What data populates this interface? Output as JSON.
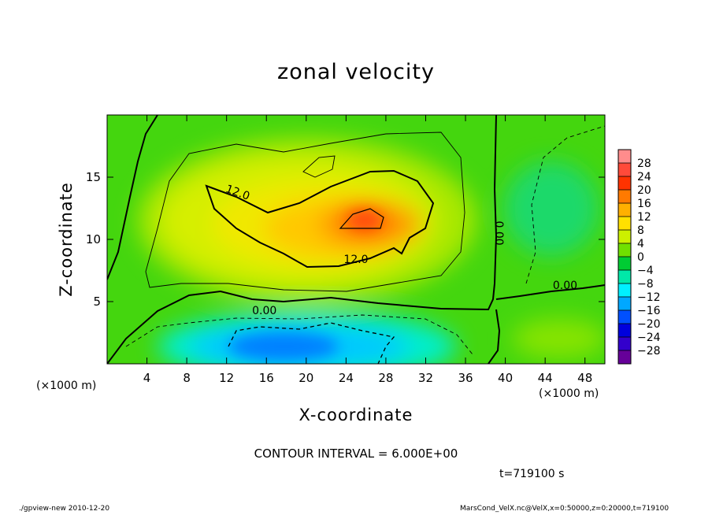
{
  "title": "zonal velocity",
  "xlabel": "X-coordinate",
  "ylabel": "Z-coordinate",
  "x_unit_left": "(×1000 m)",
  "x_unit_right": "(×1000 m)",
  "contour_interval": "CONTOUR INTERVAL = 6.000E+00",
  "time_label": "t=719100 s",
  "footer_left": "./gpview-new  2010-12-20",
  "footer_right": "MarsCond_VelX.nc@VelX,x=0:50000,z=0:20000,t=719100",
  "chart_data": {
    "type": "heatmap",
    "title": "zonal velocity",
    "xlabel": "X-coordinate",
    "ylabel": "Z-coordinate",
    "x_unit": "(×1000 m)",
    "xlim": [
      0,
      50
    ],
    "ylim": [
      0,
      20
    ],
    "xticks": [
      4,
      8,
      12,
      16,
      20,
      24,
      28,
      32,
      36,
      40,
      44,
      48
    ],
    "yticks": [
      5,
      10,
      15
    ],
    "contour_interval": 6.0,
    "contour_labels": [
      {
        "text": "12.0",
        "x": 13.0,
        "y": 13.5
      },
      {
        "text": "12.0",
        "x": 25.0,
        "y": 8.1
      },
      {
        "text": "0.00",
        "x": 15.8,
        "y": 4.0
      },
      {
        "text": "0.00",
        "x": 46.0,
        "y": 6.0
      },
      {
        "text": "0.00",
        "x": 39.0,
        "y": 10.5,
        "rotated": true
      }
    ],
    "colorbar": {
      "levels": [
        -28,
        -24,
        -20,
        -16,
        -12,
        -8,
        -4,
        0,
        4,
        8,
        12,
        16,
        20,
        24,
        28
      ],
      "labels": [
        "28",
        "24",
        "20",
        "16",
        "12",
        "8",
        "4",
        "0",
        "−4",
        "−8",
        "−12",
        "−16",
        "−20",
        "−24",
        "−28"
      ],
      "colors_top_to_bottom": [
        "#ff8c8c",
        "#ff4a3a",
        "#ff3300",
        "#ff7a00",
        "#ffb000",
        "#ffe000",
        "#ccf000",
        "#70e000",
        "#00cc33",
        "#00e8a8",
        "#00f0ff",
        "#00a8ff",
        "#0050ff",
        "#0000dd",
        "#3300cc",
        "#660099"
      ]
    },
    "features": [
      {
        "name": "core maximum",
        "x": 25.5,
        "y": 11.7,
        "value": 20
      },
      {
        "name": "lower minimum",
        "x": 20,
        "y": 1.5,
        "value": -14
      },
      {
        "name": "right minimum",
        "x": 45,
        "y": 14,
        "value": -6
      }
    ]
  }
}
